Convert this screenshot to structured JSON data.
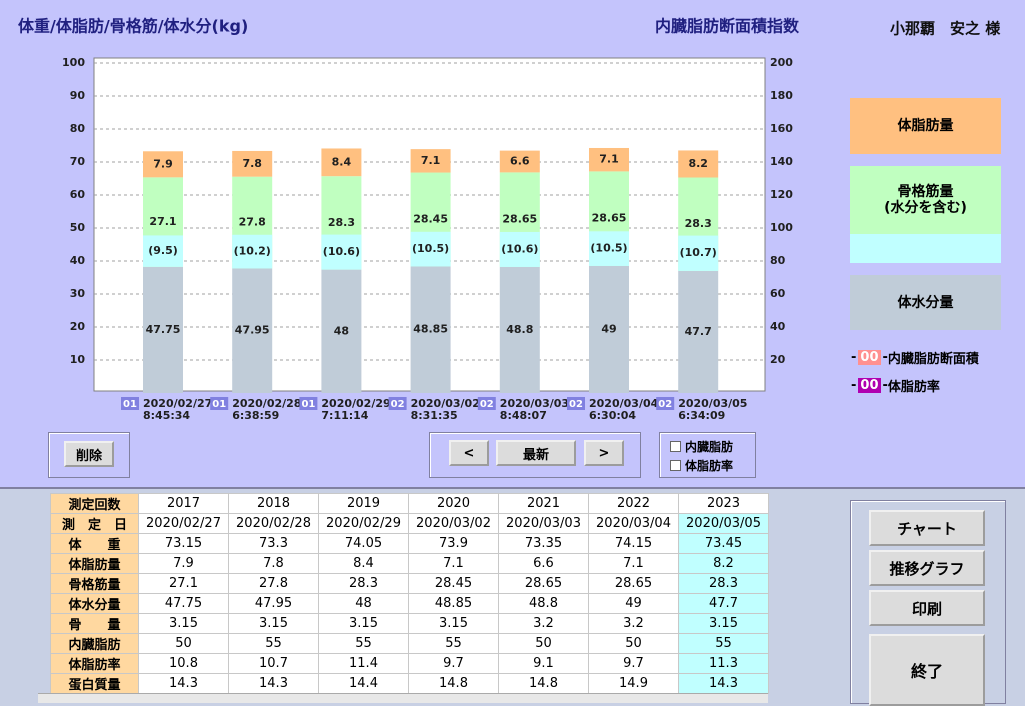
{
  "header": {
    "title": "体重/体脂肪/骨格筋/体水分(kg)",
    "subtitle": "内臓脂肪断面積指数",
    "patient": "小那覇　安之 様"
  },
  "chart_data": {
    "type": "bar",
    "categories": [
      "2020/02/27",
      "2020/02/28",
      "2020/02/29",
      "2020/03/02",
      "2020/03/03",
      "2020/03/04",
      "2020/03/05"
    ],
    "times": [
      "8:45:34",
      "6:38:59",
      "7:11:14",
      "8:31:35",
      "8:48:07",
      "6:30:04",
      "6:34:09"
    ],
    "badges": [
      "01",
      "01",
      "01",
      "02",
      "02",
      "02",
      "02"
    ],
    "ylim": [
      0,
      100
    ],
    "yticks": [
      10,
      20,
      30,
      40,
      50,
      60,
      70,
      80,
      90,
      100
    ],
    "y2lim": [
      0,
      200
    ],
    "y2ticks": [
      20,
      40,
      60,
      80,
      100,
      120,
      140,
      160,
      180,
      200
    ],
    "grid": true,
    "series": [
      {
        "name": "体水分量",
        "color": "#c0ccd8",
        "values": [
          47.75,
          47.95,
          48,
          48.85,
          48.8,
          49,
          47.7
        ]
      },
      {
        "color": "#c0ffff",
        "values": [
          9.5,
          10.2,
          10.6,
          10.5,
          10.6,
          10.5,
          10.7
        ],
        "value_labels": [
          "(9.5)",
          "(10.2)",
          "(10.6)",
          "(10.5)",
          "(10.6)",
          "(10.5)",
          "(10.7)"
        ]
      },
      {
        "name": "骨格筋量\n(水分を含む)",
        "color": "#c0ffc0",
        "values": [
          27.1,
          27.8,
          28.3,
          28.45,
          28.65,
          28.65,
          28.3
        ]
      },
      {
        "name": "体脂肪量",
        "color": "#ffc080",
        "values": [
          7.9,
          7.8,
          8.4,
          7.1,
          6.6,
          7.1,
          8.2
        ]
      }
    ],
    "markers": [
      {
        "label": "00",
        "name": "内臓脂肪断面積",
        "color": "#ff9090"
      },
      {
        "label": "00",
        "name": "体脂肪率",
        "color": "#b000b0"
      }
    ]
  },
  "buttons": {
    "delete": "削除",
    "prev": "<",
    "latest": "最新",
    "next": ">",
    "chart": "チャート",
    "trend": "推移グラフ",
    "print": "印刷",
    "exit": "終了"
  },
  "checkboxes": [
    "内臓脂肪",
    "体脂肪率"
  ],
  "table": {
    "header": [
      "測定回数",
      "2017",
      "2018",
      "2019",
      "2020",
      "2021",
      "2022",
      "2023"
    ],
    "rows": [
      [
        "測　定　日",
        "2020/02/27",
        "2020/02/28",
        "2020/02/29",
        "2020/03/02",
        "2020/03/03",
        "2020/03/04",
        "2020/03/05"
      ],
      [
        "体　　重",
        "73.15",
        "73.3",
        "74.05",
        "73.9",
        "73.35",
        "74.15",
        "73.45"
      ],
      [
        "体脂肪量",
        "7.9",
        "7.8",
        "8.4",
        "7.1",
        "6.6",
        "7.1",
        "8.2"
      ],
      [
        "骨格筋量",
        "27.1",
        "27.8",
        "28.3",
        "28.45",
        "28.65",
        "28.65",
        "28.3"
      ],
      [
        "体水分量",
        "47.75",
        "47.95",
        "48",
        "48.85",
        "48.8",
        "49",
        "47.7"
      ],
      [
        "骨　　量",
        "3.15",
        "3.15",
        "3.15",
        "3.15",
        "3.2",
        "3.2",
        "3.15"
      ],
      [
        "内臓脂肪",
        "50",
        "55",
        "55",
        "55",
        "50",
        "50",
        "55"
      ],
      [
        "体脂肪率",
        "10.8",
        "10.7",
        "11.4",
        "9.7",
        "9.1",
        "9.7",
        "11.3"
      ],
      [
        "蛋白質量",
        "14.3",
        "14.3",
        "14.4",
        "14.8",
        "14.8",
        "14.9",
        "14.3"
      ]
    ]
  }
}
